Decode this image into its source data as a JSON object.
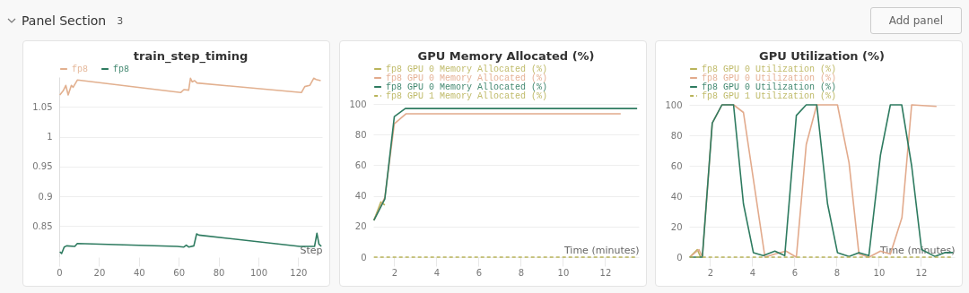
{
  "chart_data": [
    {
      "type": "other",
      "title": "Panel Section",
      "annotations": [
        "3",
        "Add panel"
      ]
    },
    {
      "type": "line",
      "title": "train_step_timing",
      "xlabel": "Step",
      "xlim": [
        0,
        132
      ],
      "xticks": [
        0,
        20,
        40,
        60,
        80,
        100,
        120
      ],
      "ylim": [
        0.798,
        1.1
      ],
      "yticks": [
        0.85,
        0.9,
        0.95,
        1,
        1.05
      ],
      "grid": "y",
      "legend": "top",
      "series": [
        {
          "name": "fp8",
          "color": "#e2b08f",
          "x": [
            0.3,
            2,
            3.3,
            4.5,
            6.1,
            7,
            9.1,
            61,
            62.6,
            65,
            65.9,
            66.8,
            68,
            69.2,
            121.6,
            123.3,
            125.8,
            127.8,
            129,
            131.3
          ],
          "values": [
            1.07,
            1.077,
            1.086,
            1.07,
            1.086,
            1.083,
            1.095,
            1.074,
            1.079,
            1.078,
            1.098,
            1.092,
            1.094,
            1.09,
            1.074,
            1.084,
            1.086,
            1.098,
            1.096,
            1.094
          ]
        },
        {
          "name": "fp8",
          "color": "#2e7b60",
          "x": [
            0.3,
            1.2,
            2.5,
            3.7,
            7.8,
            9.1,
            59.3,
            62.6,
            63.8,
            65,
            67.6,
            69,
            70.1,
            120.8,
            128.2,
            129.4,
            130.4,
            131.6
          ],
          "values": [
            0.807,
            0.804,
            0.815,
            0.817,
            0.816,
            0.821,
            0.816,
            0.815,
            0.818,
            0.815,
            0.817,
            0.837,
            0.835,
            0.816,
            0.816,
            0.838,
            0.82,
            0.816
          ]
        }
      ]
    },
    {
      "type": "line",
      "title": "GPU Memory Allocated (%)",
      "xlabel": "Time (minutes)",
      "xlim": [
        1,
        13.6
      ],
      "xticks": [
        2,
        4,
        6,
        8,
        10,
        12
      ],
      "ylim": [
        0,
        100
      ],
      "yticks": [
        0,
        20,
        40,
        60,
        80,
        100
      ],
      "grid": "y",
      "legend": "top",
      "series": [
        {
          "name": "fp8 GPU 0 Memory Allocated (%)",
          "color": "#b9b45a",
          "x": [
            1.03,
            1.36,
            1.55
          ],
          "values": [
            24,
            36,
            34
          ]
        },
        {
          "name": "fp8 GPU 0 Memory Allocated (%)",
          "color": "#e2aa8c",
          "x": [
            1.03,
            1.55,
            2,
            2.56,
            12.74
          ],
          "values": [
            24,
            39,
            87,
            93.6,
            93.6
          ]
        },
        {
          "name": "fp8 GPU 0 Memory Allocated (%)",
          "color": "#2e7b60",
          "x": [
            1.03,
            1.55,
            2,
            2.52,
            13.52
          ],
          "values": [
            24,
            38,
            91.7,
            97,
            97
          ]
        },
        {
          "name": "fp8 GPU 1 Memory Allocated (%)",
          "color": "#b9b45a",
          "line_style": "dashed",
          "x": [
            1.03,
            13.52
          ],
          "values": [
            0,
            0
          ]
        }
      ]
    },
    {
      "type": "line",
      "title": "GPU Utilization (%)",
      "xlabel": "Time (minutes)",
      "xlim": [
        1,
        13.6
      ],
      "xticks": [
        2,
        4,
        6,
        8,
        10,
        12
      ],
      "ylim": [
        0,
        100
      ],
      "yticks": [
        0,
        20,
        40,
        60,
        80,
        100
      ],
      "grid": "y",
      "legend": "top",
      "series": [
        {
          "name": "fp8 GPU 0 Utilization (%)",
          "color": "#b9b45a",
          "x": [
            1.03,
            1.39,
            1.55
          ],
          "values": [
            0,
            5,
            0
          ]
        },
        {
          "name": "fp8 GPU 0 Utilization (%)",
          "color": "#e2aa8c",
          "x": [
            1.03,
            1.47,
            1.63,
            2.1,
            2.56,
            3.11,
            3.58,
            4.6,
            5.07,
            5.6,
            6.09,
            6.56,
            7.06,
            8.04,
            8.59,
            9.06,
            9.53,
            10.08,
            10.55,
            11.1,
            11.56,
            12.74
          ],
          "values": [
            0,
            5,
            0,
            88,
            100,
            100,
            95,
            0,
            2,
            4,
            0,
            74,
            100,
            100,
            62,
            2,
            0,
            4,
            2,
            26,
            100,
            99
          ]
        },
        {
          "name": "fp8 GPU 0 Utilization (%)",
          "color": "#2e7b60",
          "x": [
            1.03,
            1.63,
            2.1,
            2.56,
            3.11,
            3.58,
            4.05,
            4.52,
            5.07,
            5.54,
            6.09,
            6.56,
            7.06,
            7.57,
            8.04,
            8.59,
            9.06,
            9.53,
            10.08,
            10.55,
            11.09,
            11.56,
            12.03,
            12.66,
            13.13,
            13.52
          ],
          "values": [
            0,
            0,
            88,
            100,
            100,
            35,
            3,
            1,
            4,
            1,
            93,
            100,
            100,
            35,
            3,
            0.5,
            3,
            1,
            67,
            100,
            100,
            60,
            5,
            0.5,
            3,
            3
          ]
        },
        {
          "name": "fp8 GPU 1 Utilization (%)",
          "color": "#b9b45a",
          "line_style": "dashed",
          "x": [
            1.03,
            13.52
          ],
          "values": [
            0,
            0
          ]
        }
      ]
    }
  ]
}
